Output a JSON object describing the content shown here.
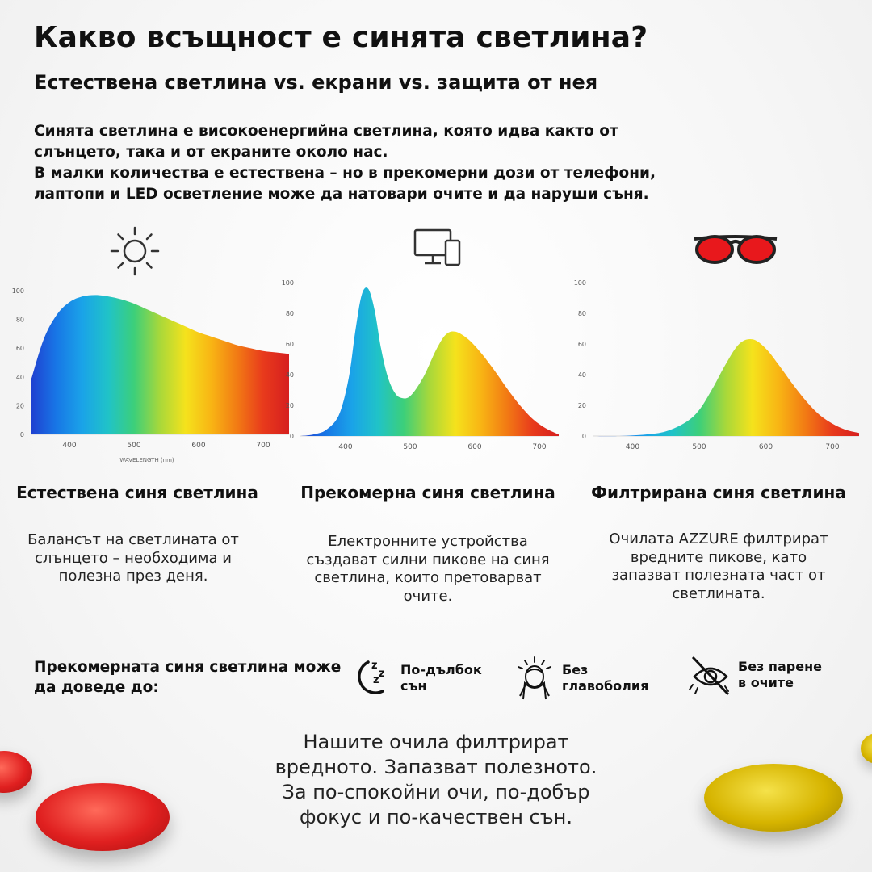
{
  "header": {
    "title": "Какво всъщност е синята светлина?",
    "subtitle": "Естествена светлина vs. екрани vs. защита от нея"
  },
  "intro": {
    "line1": "Синята светлина е високоенергийна светлина, която идва както от",
    "line2": "слънцето, така и от екраните около нас.",
    "line3": "В малки количества е естествена – но в прекомерни дози от телефони,",
    "line4": "лаптопи и LED осветление може да натовари очите и да наруши съня."
  },
  "columns": [
    {
      "icon": "sun-icon",
      "title": "Естествена синя светлина",
      "description": "Балансът на светлината от слънцето – необходима и полезна през деня."
    },
    {
      "icon": "devices-icon",
      "title": "Прекомерна синя светлина",
      "description": "Електронните устройства създават силни пикове на синя светлина, които претоварват очите."
    },
    {
      "icon": "red-glasses-icon",
      "title": "Филтрирана синя светлина",
      "description": "Очилата AZZURE филтрират вредните пикове, като запазват полезната част от светлината."
    }
  ],
  "chart_data": [
    {
      "type": "area",
      "xlabel": "WAVELENGTH (nm)",
      "ylabel": "",
      "xlim": [
        340,
        740
      ],
      "ylim": [
        0,
        100
      ],
      "x_ticks": [
        "400",
        "500",
        "600",
        "700"
      ],
      "y_ticks": [
        "0",
        "20",
        "40",
        "60",
        "80",
        "100"
      ],
      "x": [
        340,
        360,
        380,
        400,
        420,
        440,
        460,
        480,
        500,
        520,
        540,
        560,
        580,
        600,
        620,
        640,
        660,
        680,
        700,
        720,
        740
      ],
      "values": [
        37,
        66,
        83,
        92,
        96,
        97,
        96,
        94,
        91,
        87,
        83,
        79,
        75,
        71,
        68,
        65,
        62,
        60,
        58,
        57,
        56
      ]
    },
    {
      "type": "area",
      "xlabel": "",
      "ylabel": "",
      "xlim": [
        330,
        730
      ],
      "ylim": [
        0,
        100
      ],
      "x_ticks": [
        "400",
        "500",
        "600",
        "700"
      ],
      "y_ticks": [
        "0",
        "20",
        "40",
        "60",
        "80",
        "100"
      ],
      "x": [
        330,
        350,
        370,
        390,
        405,
        415,
        425,
        435,
        445,
        455,
        465,
        475,
        485,
        500,
        520,
        540,
        555,
        570,
        590,
        610,
        630,
        650,
        670,
        690,
        710,
        730
      ],
      "values": [
        0,
        1,
        4,
        14,
        38,
        68,
        92,
        96,
        82,
        57,
        39,
        29,
        25,
        26,
        38,
        56,
        66,
        68,
        63,
        54,
        43,
        31,
        20,
        11,
        5,
        1
      ]
    },
    {
      "type": "area",
      "xlabel": "",
      "ylabel": "",
      "xlim": [
        340,
        740
      ],
      "ylim": [
        0,
        100
      ],
      "x_ticks": [
        "400",
        "500",
        "600",
        "700"
      ],
      "y_ticks": [
        "0",
        "20",
        "40",
        "60",
        "80",
        "100"
      ],
      "x": [
        340,
        380,
        420,
        450,
        480,
        500,
        520,
        540,
        560,
        580,
        600,
        620,
        640,
        660,
        680,
        700,
        720,
        740
      ],
      "values": [
        0,
        0,
        1,
        3,
        9,
        17,
        31,
        47,
        60,
        63,
        57,
        46,
        34,
        23,
        14,
        8,
        4,
        2
      ]
    }
  ],
  "effects": {
    "label": "Прекомерната синя светлина може да доведе до:",
    "items": [
      {
        "icon": "sleep-zzz-icon",
        "label": "По-дълбок\nсън"
      },
      {
        "icon": "headache-icon",
        "label": "Без\nглавоболия"
      },
      {
        "icon": "eye-strain-icon",
        "label": "Без парене\nв очите"
      }
    ]
  },
  "closing": {
    "line1": "Нашите очила филтрират",
    "line2": "вредното. Запазват полезното.",
    "line3": "За по-спокойни очи, по-добър",
    "line4": "фокус и по-качествен сън."
  },
  "colors": {
    "text": "#111111",
    "lens_red": "#e02020",
    "lens_yellow": "#d6b400"
  }
}
